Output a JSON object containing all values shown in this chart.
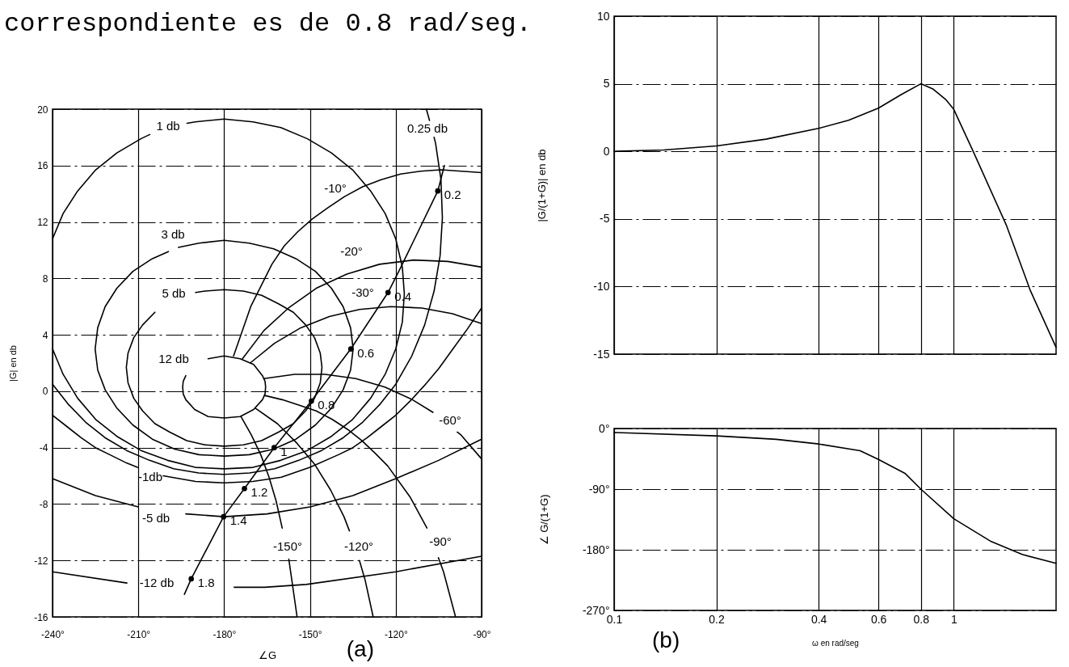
{
  "chart_data": [
    {
      "type": "line",
      "title": "(a)",
      "xlabel": "∠G",
      "ylabel": "|G| en db",
      "xlim": [
        -240,
        -90
      ],
      "ylim": [
        -16,
        20
      ],
      "xticks": [
        {
          "value": -240,
          "label": "-240°"
        },
        {
          "value": -210,
          "label": "-210°"
        },
        {
          "value": -180,
          "label": "-180°"
        },
        {
          "value": -150,
          "label": "-150°"
        },
        {
          "value": -120,
          "label": "-120°"
        },
        {
          "value": -90,
          "label": "-90°"
        }
      ],
      "yticks": [
        -16,
        -12,
        -8,
        -4,
        0,
        4,
        8,
        12,
        16,
        20
      ],
      "grid": true,
      "series": [
        {
          "type": "line",
          "color": "#000000",
          "x": [
            -193.9,
            -191.5,
            -180.2,
            -172.9,
            -162.5,
            -149.5,
            -135.7,
            -122.7,
            -118.2,
            -105.3,
            -103.0
          ],
          "values": [
            -14.4,
            -13.3,
            -8.9,
            -6.9,
            -4.0,
            -0.7,
            3.0,
            7.0,
            8.8,
            14.2,
            16.0
          ]
        },
        {
          "type": "line",
          "name": "12 db",
          "color": "#000000",
          "x": [
            -185.6,
            -180.0,
            -174.4,
            -169.7,
            -166.6,
            -165.7,
            -165.5,
            -165.7,
            -166.6,
            -169.7,
            -174.4,
            -180.0,
            -185.6,
            -190.3,
            -193.4,
            -194.3,
            -194.5,
            -194.3,
            -193.4
          ],
          "values": [
            2.3,
            2.5,
            2.3,
            1.9,
            1.1,
            0.7,
            0.3,
            -0.2,
            -0.6,
            -1.3,
            -1.8,
            -1.9,
            -1.8,
            -1.3,
            -0.6,
            -0.2,
            0.3,
            0.7,
            1.1
          ]
        },
        {
          "type": "line",
          "name": "5 db",
          "color": "#000000",
          "x": [
            -190.0,
            -186.7,
            -180.0,
            -173.3,
            -166.9,
            -161.0,
            -155.8,
            -151.5,
            -148.4,
            -146.4,
            -145.8,
            -146.4,
            -148.4,
            -151.5,
            -155.8,
            -161.0,
            -166.9,
            -173.3,
            -180.0,
            -186.7,
            -193.1,
            -199.0,
            -204.2,
            -208.5,
            -211.6,
            -213.6,
            -214.2,
            -213.6,
            -211.6,
            -208.5,
            -204.2
          ],
          "values": [
            7.0,
            7.1,
            7.2,
            7.1,
            6.8,
            6.2,
            5.6,
            4.7,
            3.8,
            2.7,
            1.7,
            0.6,
            -0.5,
            -1.4,
            -2.3,
            -2.9,
            -3.5,
            -3.8,
            -3.9,
            -3.8,
            -3.5,
            -2.9,
            -2.3,
            -1.4,
            -0.5,
            0.6,
            1.7,
            2.7,
            3.8,
            4.7,
            5.6
          ]
        },
        {
          "type": "line",
          "name": "3 db",
          "color": "#000000",
          "x": [
            -196.0,
            -188.8,
            -180.0,
            -171.2,
            -162.7,
            -154.9,
            -148.1,
            -142.5,
            -138.4,
            -135.8,
            -134.9,
            -135.8,
            -138.4,
            -142.5,
            -148.1,
            -154.9,
            -162.7,
            -171.2,
            -180.0,
            -188.8,
            -197.3,
            -205.1,
            -211.9,
            -217.5,
            -221.6,
            -224.2,
            -225.1,
            -224.2,
            -221.6,
            -217.5,
            -211.9,
            -205.1,
            -199.5
          ],
          "values": [
            10.2,
            10.5,
            10.7,
            10.5,
            10.1,
            9.4,
            8.5,
            7.3,
            6.0,
            4.5,
            3.0,
            1.5,
            0.1,
            -1.2,
            -2.4,
            -3.4,
            -4.1,
            -4.5,
            -4.6,
            -4.5,
            -4.1,
            -3.4,
            -2.4,
            -1.2,
            0.1,
            1.5,
            3.0,
            4.5,
            6.0,
            7.3,
            8.5,
            9.4,
            9.9
          ]
        },
        {
          "type": "line",
          "name": "1 db",
          "color": "#000000",
          "x": [
            -240.0,
            -236.3,
            -231.2,
            -224.9,
            -217.5,
            -209.1,
            -206.0,
            -199.5,
            -193.0,
            -190.1,
            -180.0,
            -169.9,
            -160.2,
            -150.9,
            -142.5,
            -135.1,
            -128.8,
            -123.7,
            -120.0,
            -117.7,
            -117.0,
            -117.7,
            -120.0,
            -123.7,
            -128.8,
            -135.1,
            -142.5,
            -150.9,
            -160.2,
            -169.9,
            -180.0,
            -190.1,
            -199.8,
            -209.1,
            -217.5,
            -224.9,
            -231.2,
            -236.3,
            -240.0
          ],
          "values": [
            10.8,
            12.6,
            14.2,
            15.7,
            16.9,
            17.9,
            18.2,
            null,
            19.0,
            19.1,
            19.3,
            19.1,
            18.7,
            17.9,
            16.9,
            15.7,
            14.2,
            12.6,
            10.8,
            8.8,
            6.9,
            4.9,
            3.0,
            1.2,
            -0.5,
            -2.0,
            -3.2,
            -4.2,
            -4.9,
            -5.4,
            -5.5,
            -5.4,
            -4.9,
            -4.2,
            -3.2,
            -2.0,
            -0.5,
            1.2,
            3.0
          ]
        },
        {
          "type": "line",
          "name": "0.25 db",
          "color": "#000000",
          "x": [
            -240.0,
            -234.6,
            -228.4,
            -221.6,
            -214.1,
            -206.1,
            -197.7,
            -188.9,
            -180.0,
            -171.1,
            -162.3,
            -153.9,
            -145.9,
            -138.4,
            -131.6,
            -125.4,
            -120.0,
            -114.4,
            -109.9,
            -106.6,
            -104.5,
            -103.7,
            -104.2,
            -106.1,
            -106.6,
            -107.4,
            -108.2,
            -109.3
          ],
          "values": [
            0.5,
            -0.9,
            -2.2,
            -3.3,
            -4.2,
            -4.9,
            -5.5,
            -5.8,
            -5.9,
            -5.8,
            -5.5,
            -4.9,
            -4.2,
            -3.3,
            -2.2,
            -0.9,
            0.5,
            2.5,
            4.7,
            7.1,
            9.6,
            12.3,
            15.0,
            17.6,
            18.0,
            null,
            19.2,
            20.0
          ]
        },
        {
          "type": "line",
          "name": "-1db",
          "color": "#000000",
          "x": [
            -240,
            -235,
            -230,
            -225,
            -220,
            -214,
            -210.3,
            -205.8,
            -201.3,
            -190,
            -180,
            -170,
            -160,
            -150,
            -140,
            -135,
            -130,
            -125,
            -120,
            -115,
            -110,
            -105,
            -100,
            -95,
            -90
          ],
          "values": [
            -1.7,
            -2.5,
            -3.3,
            -4.0,
            -4.5,
            -5.1,
            -5.4,
            null,
            -6.0,
            -6.4,
            -6.5,
            -6.4,
            -6.1,
            -5.4,
            -4.5,
            -4.0,
            -3.3,
            -2.5,
            -1.7,
            -0.7,
            0.4,
            1.6,
            3.0,
            4.4,
            5.9
          ]
        },
        {
          "type": "line",
          "name": "-5 db",
          "color": "#000000",
          "x": [
            -240,
            -225,
            -210,
            -202,
            -193.4,
            -180,
            -165,
            -150,
            -135,
            -120,
            -105,
            -90
          ],
          "values": [
            -6.2,
            -7.4,
            -8.2,
            null,
            -8.7,
            -8.9,
            -8.7,
            -8.2,
            -7.4,
            -6.2,
            -4.9,
            -3.4
          ]
        },
        {
          "type": "line",
          "name": "-12 db",
          "color": "#000000",
          "x": [
            -240,
            -214,
            -195,
            -176.5,
            -165.8,
            -151.3,
            -120,
            -90
          ],
          "values": [
            -12.8,
            -13.6,
            null,
            -13.9,
            -13.9,
            -13.7,
            -12.8,
            -11.7
          ]
        },
        {
          "type": "line",
          "name": "-10°",
          "color": "#000000",
          "x": [
            -176.7,
            -170.7,
            -163.3,
            -159.0,
            -154.3,
            -149.3,
            -143.8,
            -137.9,
            -131.6,
            -125.1,
            -118.3,
            -111.3,
            -104.2,
            -97.1,
            -90.0
          ],
          "values": [
            2.5,
            6.0,
            9.0,
            10.3,
            11.3,
            12.2,
            13.0,
            13.8,
            14.5,
            15.0,
            15.4,
            15.6,
            15.7,
            15.6,
            15.5
          ]
        },
        {
          "type": "line",
          "name": "-20°",
          "color": "#000000",
          "x": [
            -173.6,
            -166.1,
            -157.5,
            -147.8,
            -137.1,
            -125.7,
            -113.8,
            -101.8,
            -90.0
          ],
          "values": [
            2.3,
            4.3,
            5.9,
            7.3,
            8.3,
            9.0,
            9.3,
            9.2,
            8.8
          ]
        },
        {
          "type": "line",
          "name": "-30°",
          "color": "#000000",
          "x": [
            -170.9,
            -162.4,
            -153.2,
            -143.2,
            -132.7,
            -121.8,
            -110.9,
            -100.2,
            -90.0
          ],
          "values": [
            2.0,
            3.4,
            4.5,
            5.3,
            5.8,
            6.0,
            5.9,
            5.5,
            4.8
          ]
        },
        {
          "type": "line",
          "name": "-60°",
          "color": "#000000",
          "x": [
            -166.0,
            -155.4,
            -144.7,
            -134.0,
            -123.8,
            -114.2,
            -107.0,
            -102.8,
            -98.5,
            -97.2,
            -90.0
          ],
          "values": [
            0.9,
            1.2,
            1.2,
            0.9,
            0.3,
            -0.6,
            -1.5,
            null,
            -2.9,
            -3.1,
            -4.8
          ]
        },
        {
          "type": "line",
          "name": "-90°",
          "color": "#000000",
          "x": [
            -165.9,
            -159.7,
            -153.7,
            -147.8,
            -142.2,
            -136.9,
            -131.9,
            -127.2,
            -122.8,
            -115.0,
            -109.1,
            -107.1,
            -105.1,
            -103.3,
            -99.1
          ],
          "values": [
            -0.3,
            -0.6,
            -1.0,
            -1.4,
            -2.0,
            -2.7,
            -3.5,
            -4.4,
            -5.3,
            -7.5,
            -9.7,
            null,
            -11.8,
            -12.8,
            -16.0
          ]
        },
        {
          "type": "line",
          "name": "-120°",
          "color": "#000000",
          "x": [
            -169.1,
            -161.4,
            -154.5,
            -148.3,
            -142.8,
            -138.1,
            -136.2,
            -134.5,
            -132.7,
            -130.7,
            -127.9
          ],
          "values": [
            -1.2,
            -2.3,
            -3.7,
            -5.2,
            -7.0,
            -8.9,
            -9.9,
            null,
            -12.0,
            -13.4,
            -16.0
          ]
        },
        {
          "type": "line",
          "name": "-150°",
          "color": "#000000",
          "x": [
            -174.1,
            -170.5,
            -167.2,
            -164.3,
            -161.8,
            -159.7,
            -158.5,
            -157.4,
            -154.5
          ],
          "values": [
            -1.8,
            -3.1,
            -4.5,
            -6.1,
            -7.8,
            -9.7,
            null,
            -11.9,
            -16.0
          ]
        },
        {
          "type": "scatter",
          "marker": "circle",
          "color": "#000000",
          "x": [
            -191.5,
            -180.2,
            -172.9,
            -162.5,
            -149.5,
            -135.7,
            -122.7,
            -105.3
          ],
          "values": [
            -13.3,
            -8.9,
            -6.9,
            -4.0,
            -0.7,
            3.0,
            7.0,
            14.2
          ]
        }
      ],
      "annotations": [
        "correspondiente es de 0.8 rad/seg.",
        {
          "text": "0.2",
          "x": -105.3,
          "y": 14.2
        },
        {
          "text": "0.4",
          "x": -122.7,
          "y": 7.0
        },
        {
          "text": "0.6",
          "x": -135.7,
          "y": 3.0
        },
        {
          "text": "0.8",
          "x": -149.5,
          "y": -0.7
        },
        {
          "text": "1",
          "x": -162.5,
          "y": -4.0
        },
        {
          "text": "1.2",
          "x": -172.9,
          "y": -6.9
        },
        {
          "text": "1.4",
          "x": -180.2,
          "y": -8.9
        },
        {
          "text": "1.8",
          "x": -191.5,
          "y": -13.3
        }
      ]
    },
    {
      "type": "line",
      "ylabel": "|G/(1+G)| en db",
      "log": "x",
      "xlim": [
        0.1,
        2
      ],
      "ylim": [
        -15,
        10
      ],
      "xticks": [
        0.1,
        0.2,
        0.4,
        0.6,
        0.8,
        1
      ],
      "yticks": [
        -15,
        -10,
        -5,
        0,
        5,
        10
      ],
      "tick_labels": "y",
      "grid": true,
      "x": [
        0.1,
        0.14,
        0.2,
        0.28,
        0.4,
        0.49,
        0.6,
        0.7,
        0.8,
        0.87,
        0.95,
        1,
        1.14,
        1.43,
        1.68,
        2
      ],
      "series": [
        {
          "color": "#000000",
          "values": [
            0,
            0.1,
            0.4,
            0.9,
            1.7,
            2.3,
            3.2,
            4.2,
            5.0,
            4.6,
            3.8,
            3.1,
            0,
            -5.5,
            -10.3,
            -14.5
          ]
        }
      ]
    },
    {
      "type": "line",
      "title": "(b)",
      "xlabel": "ω en rad/seg",
      "ylabel": "∠ G/(1+G)",
      "log": "x",
      "xlim": [
        0.1,
        2
      ],
      "ylim": [
        -270,
        0
      ],
      "xticks": [
        0.1,
        0.2,
        0.4,
        0.6,
        0.8,
        1
      ],
      "yticks": [
        {
          "value": -270,
          "label": "-270°"
        },
        {
          "value": -180,
          "label": "-180°"
        },
        {
          "value": -90,
          "label": "-90°"
        },
        {
          "value": 0,
          "label": "0°"
        }
      ],
      "grid": true,
      "x": [
        0.1,
        0.2,
        0.3,
        0.4,
        0.53,
        0.6,
        0.72,
        0.8,
        1,
        1.28,
        1.59,
        2
      ],
      "series": [
        {
          "color": "#000000",
          "values": [
            -6,
            -11,
            -16,
            -23,
            -33,
            -46,
            -67,
            -90,
            -134,
            -167,
            -187,
            -200
          ]
        }
      ]
    }
  ]
}
